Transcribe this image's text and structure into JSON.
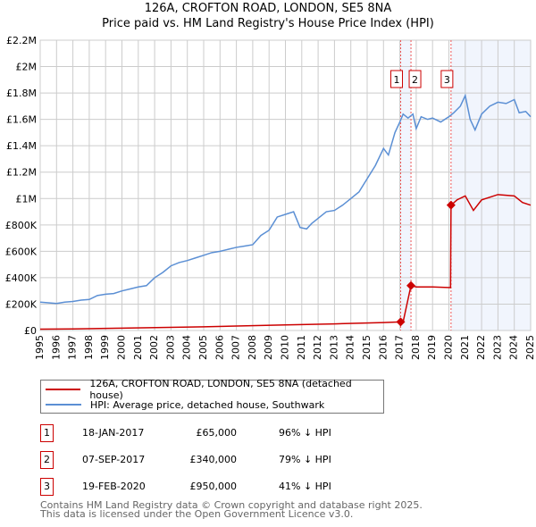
{
  "chart_data": {
    "type": "line",
    "title": "126A, CROFTON ROAD, LONDON, SE5 8NA",
    "subtitle": "Price paid vs. HM Land Registry's House Price Index (HPI)",
    "xlim": [
      1995,
      2025
    ],
    "ylim": [
      0,
      2200000
    ],
    "x_ticks": [
      "1995",
      "1996",
      "1997",
      "1998",
      "1999",
      "2000",
      "2001",
      "2002",
      "2003",
      "2004",
      "2005",
      "2006",
      "2007",
      "2008",
      "2009",
      "2010",
      "2011",
      "2012",
      "2013",
      "2014",
      "2015",
      "2016",
      "2017",
      "2018",
      "2019",
      "2020",
      "2021",
      "2022",
      "2023",
      "2024",
      "2025"
    ],
    "y_ticks": [
      {
        "v": 0,
        "l": "£0"
      },
      {
        "v": 200000,
        "l": "£200K"
      },
      {
        "v": 400000,
        "l": "£400K"
      },
      {
        "v": 600000,
        "l": "£600K"
      },
      {
        "v": 800000,
        "l": "£800K"
      },
      {
        "v": 1000000,
        "l": "£1M"
      },
      {
        "v": 1200000,
        "l": "£1.2M"
      },
      {
        "v": 1400000,
        "l": "£1.4M"
      },
      {
        "v": 1600000,
        "l": "£1.6M"
      },
      {
        "v": 1800000,
        "l": "£1.8M"
      },
      {
        "v": 2000000,
        "l": "£2M"
      },
      {
        "v": 2200000,
        "l": "£2.2M"
      }
    ],
    "grid": true,
    "series": [
      {
        "name": "126A, CROFTON ROAD, LONDON, SE5 8NA (detached house)",
        "color": "#cc0000",
        "x": [
          1995,
          1997,
          2000,
          2005,
          2010,
          2013,
          2016,
          2017.05,
          2017.2,
          2017.68,
          2018,
          2019,
          2020.1,
          2020.13,
          2020.5,
          2021,
          2021.5,
          2022,
          2023,
          2024,
          2024.5,
          2025
        ],
        "y": [
          10000,
          12000,
          18000,
          28000,
          42000,
          50000,
          60000,
          65000,
          65000,
          340000,
          330000,
          330000,
          325000,
          950000,
          990000,
          1020000,
          910000,
          990000,
          1030000,
          1020000,
          970000,
          950000
        ]
      },
      {
        "name": "HPI: Average price, detached house, Southwark",
        "color": "#5b8fd4",
        "x": [
          1995,
          1995.5,
          1996,
          1996.5,
          1997,
          1997.5,
          1998,
          1998.5,
          1999,
          1999.5,
          2000,
          2000.5,
          2001,
          2001.5,
          2002,
          2002.5,
          2003,
          2003.5,
          2004,
          2004.5,
          2005,
          2005.5,
          2006,
          2006.5,
          2007,
          2007.5,
          2008,
          2008.5,
          2009,
          2009.5,
          2010,
          2010.5,
          2010.9,
          2011.3,
          2011.6,
          2012,
          2012.5,
          2013,
          2013.5,
          2014,
          2014.5,
          2015,
          2015.5,
          2016,
          2016.3,
          2016.7,
          2017,
          2017.2,
          2017.5,
          2017.8,
          2018,
          2018.3,
          2018.7,
          2019,
          2019.5,
          2020,
          2020.3,
          2020.7,
          2021,
          2021.3,
          2021.6,
          2022,
          2022.5,
          2023,
          2023.5,
          2024,
          2024.3,
          2024.7,
          2025
        ],
        "y": [
          215000,
          210000,
          205000,
          215000,
          220000,
          230000,
          235000,
          265000,
          275000,
          280000,
          300000,
          315000,
          330000,
          340000,
          400000,
          440000,
          490000,
          515000,
          530000,
          550000,
          570000,
          590000,
          600000,
          615000,
          630000,
          640000,
          650000,
          720000,
          760000,
          860000,
          880000,
          900000,
          780000,
          770000,
          810000,
          850000,
          900000,
          910000,
          950000,
          1000000,
          1050000,
          1150000,
          1250000,
          1380000,
          1330000,
          1500000,
          1580000,
          1640000,
          1610000,
          1640000,
          1530000,
          1620000,
          1600000,
          1610000,
          1580000,
          1620000,
          1650000,
          1700000,
          1780000,
          1600000,
          1520000,
          1640000,
          1700000,
          1730000,
          1720000,
          1750000,
          1650000,
          1660000,
          1620000
        ]
      }
    ],
    "markers": [
      {
        "label": "1",
        "x": 2017.05,
        "y": 65000
      },
      {
        "label": "2",
        "x": 2017.68,
        "y": 340000
      },
      {
        "label": "3",
        "x": 2020.13,
        "y": 950000
      }
    ],
    "shaded": [
      [
        2017.05,
        2017.68
      ],
      [
        2020.13,
        2025
      ]
    ],
    "legend_placement": "bottom"
  },
  "transactions": [
    {
      "num": "1",
      "date": "18-JAN-2017",
      "price": "£65,000",
      "hpi": "96% ↓ HPI"
    },
    {
      "num": "2",
      "date": "07-SEP-2017",
      "price": "£340,000",
      "hpi": "79% ↓ HPI"
    },
    {
      "num": "3",
      "date": "19-FEB-2020",
      "price": "£950,000",
      "hpi": "41% ↓ HPI"
    }
  ],
  "footer": {
    "line1": "Contains HM Land Registry data © Crown copyright and database right 2025.",
    "line2": "This data is licensed under the Open Government Licence v3.0."
  }
}
